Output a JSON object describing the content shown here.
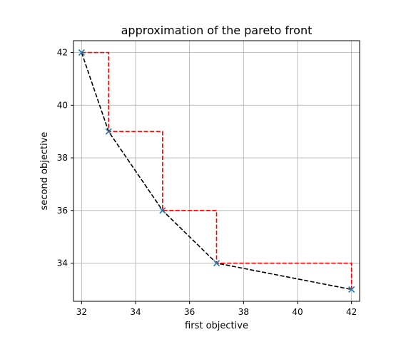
{
  "chart_data": {
    "type": "line",
    "title": "approximation of the pareto front",
    "xlabel": "first objective",
    "ylabel": "second objective",
    "xlim": [
      31.7,
      42.3
    ],
    "ylim": [
      32.55,
      42.45
    ],
    "xticks": [
      32,
      34,
      36,
      38,
      40,
      42
    ],
    "yticks": [
      34,
      36,
      38,
      40,
      42
    ],
    "grid": true,
    "points": {
      "x": [
        32,
        33,
        35,
        37,
        42
      ],
      "y": [
        42,
        39,
        36,
        34,
        33
      ],
      "marker": "x",
      "color": "#1f77b4"
    },
    "front_line": {
      "x": [
        32,
        33,
        35,
        37,
        42
      ],
      "y": [
        42,
        39,
        36,
        34,
        33
      ],
      "style": "dashed",
      "color": "#000000"
    },
    "staircase": {
      "x": [
        32,
        33,
        33,
        35,
        35,
        37,
        37,
        42,
        42
      ],
      "y": [
        42,
        42,
        39,
        39,
        36,
        36,
        34,
        34,
        33
      ],
      "style": "dashed",
      "color": "#ff0000"
    }
  }
}
